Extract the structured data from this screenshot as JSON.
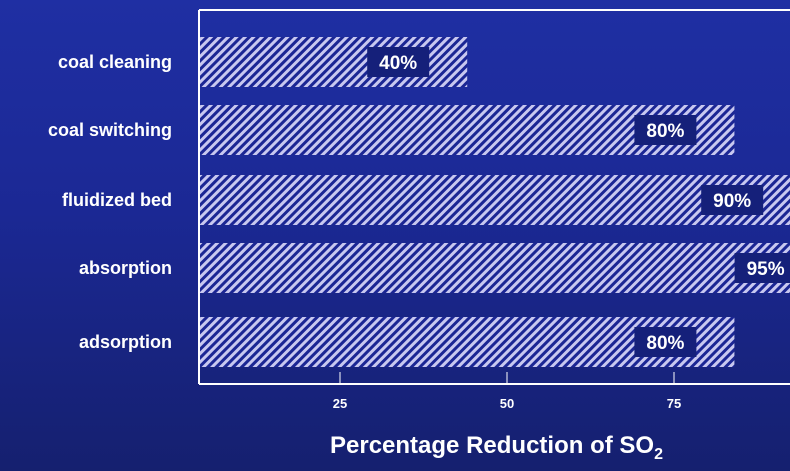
{
  "colors": {
    "background_top": "#1f2fa3",
    "background_bottom": "#15206f",
    "bar_stripe_light": "#c8c8f0",
    "bar_stripe_dark": "#1b2694",
    "label_box": "#15207a",
    "text": "#ffffff",
    "axis": "#ffffff"
  },
  "chart_data": {
    "type": "bar",
    "orientation": "horizontal",
    "categories": [
      "coal cleaning",
      "coal switching",
      "fluidized bed",
      "absorption",
      "adsorption"
    ],
    "values": [
      40,
      80,
      90,
      95,
      80
    ],
    "data_labels": [
      "40%",
      "80%",
      "90%",
      "95%",
      "80%"
    ],
    "xlabel": {
      "main": "Percentage Reduction of SO",
      "subscript": "2"
    },
    "xticks": [
      25,
      50,
      75
    ],
    "xlim": [
      0,
      88
    ],
    "grid": false,
    "legend": "none"
  }
}
